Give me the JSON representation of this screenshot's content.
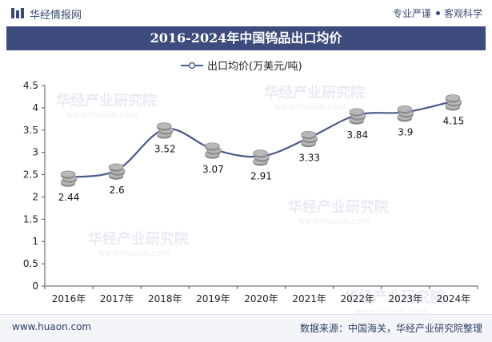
{
  "site": {
    "brand": "华经情报网",
    "badge_1": "专业严谨",
    "badge_2": "客观科学",
    "footer_url": "www.huaon.com",
    "footer_source": "数据来源：中国海关，华经产业研究院整理",
    "watermark": "华经产业研究院",
    "watermark_url": "www.huaon.com"
  },
  "colors": {
    "title_bar": "#3d4b7d",
    "line": "#4a5a8c",
    "coin": "#b8b8b8"
  },
  "chart_data": {
    "type": "line",
    "title": "2016-2024年中国钨品出口均价",
    "categories": [
      "2016年",
      "2017年",
      "2018年",
      "2019年",
      "2020年",
      "2021年",
      "2022年",
      "2023年",
      "2024年"
    ],
    "series": [
      {
        "name": "出口均价(万美元/吨)",
        "values": [
          2.44,
          2.6,
          3.52,
          3.07,
          2.91,
          3.33,
          3.84,
          3.9,
          4.15
        ]
      }
    ],
    "data_labels": [
      "2.44",
      "2.6",
      "3.52",
      "3.07",
      "2.91",
      "3.33",
      "3.84",
      "3.9",
      "4.15"
    ],
    "yticks": [
      "0",
      "0.5",
      "1",
      "1.5",
      "2",
      "2.5",
      "3",
      "3.5",
      "4",
      "4.5"
    ],
    "ylim": [
      0,
      4.5
    ],
    "smooth": true,
    "marker": "coin-stack",
    "legend_position": "top-center",
    "grid": false
  }
}
